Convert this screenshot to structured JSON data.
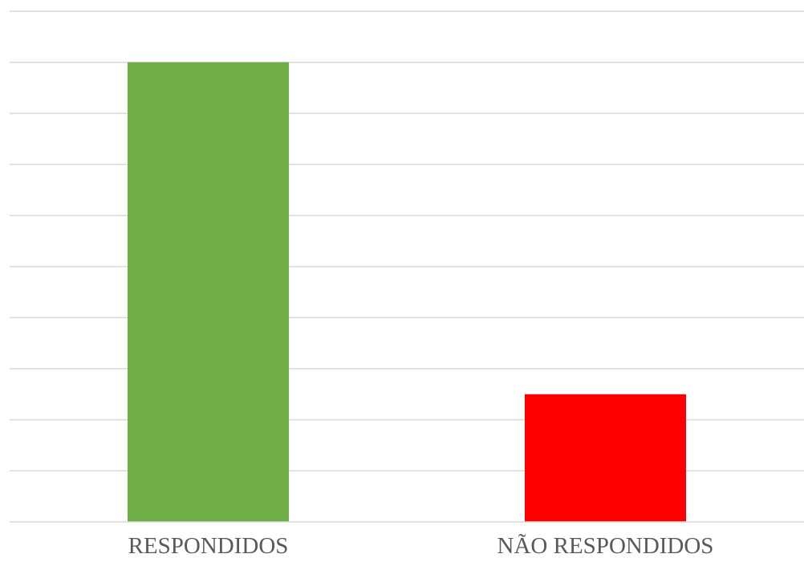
{
  "chart_data": {
    "type": "bar",
    "categories": [
      "RESPONDIDOS",
      "NÃO RESPONDIDOS"
    ],
    "values": [
      9,
      2.5
    ],
    "colors": [
      "#70AD47",
      "#FF0000"
    ],
    "ylim": [
      0,
      10
    ],
    "grid": true,
    "gridline_count": 10,
    "title": "",
    "xlabel": "",
    "ylabel": "",
    "legend": "none"
  }
}
